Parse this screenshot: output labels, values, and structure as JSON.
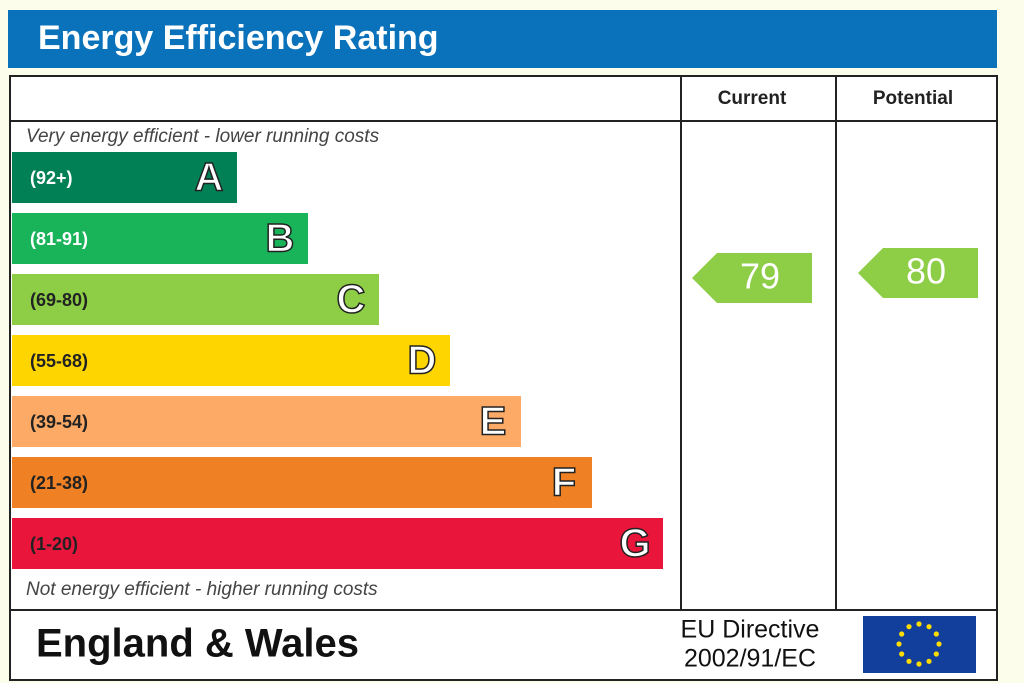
{
  "header": {
    "title": "Energy Efficiency Rating"
  },
  "columns": {
    "current": "Current",
    "potential": "Potential"
  },
  "notes": {
    "top": "Very energy efficient - lower running costs",
    "bottom": "Not energy efficient - higher running costs"
  },
  "bands": [
    {
      "range": "(92+)",
      "letter": "A",
      "color": "#008054"
    },
    {
      "range": "(81-91)",
      "letter": "B",
      "color": "#19b459"
    },
    {
      "range": "(69-80)",
      "letter": "C",
      "color": "#8dce46"
    },
    {
      "range": "(55-68)",
      "letter": "D",
      "color": "#ffd500"
    },
    {
      "range": "(39-54)",
      "letter": "E",
      "color": "#fcaa65"
    },
    {
      "range": "(21-38)",
      "letter": "F",
      "color": "#ef8023"
    },
    {
      "range": "(1-20)",
      "letter": "G",
      "color": "#e9153b"
    }
  ],
  "ratings": {
    "current": 79,
    "potential": 80,
    "color": "#8dce46"
  },
  "footer": {
    "region": "England & Wales",
    "directive": [
      "EU Directive",
      "2002/91/EC"
    ]
  }
}
